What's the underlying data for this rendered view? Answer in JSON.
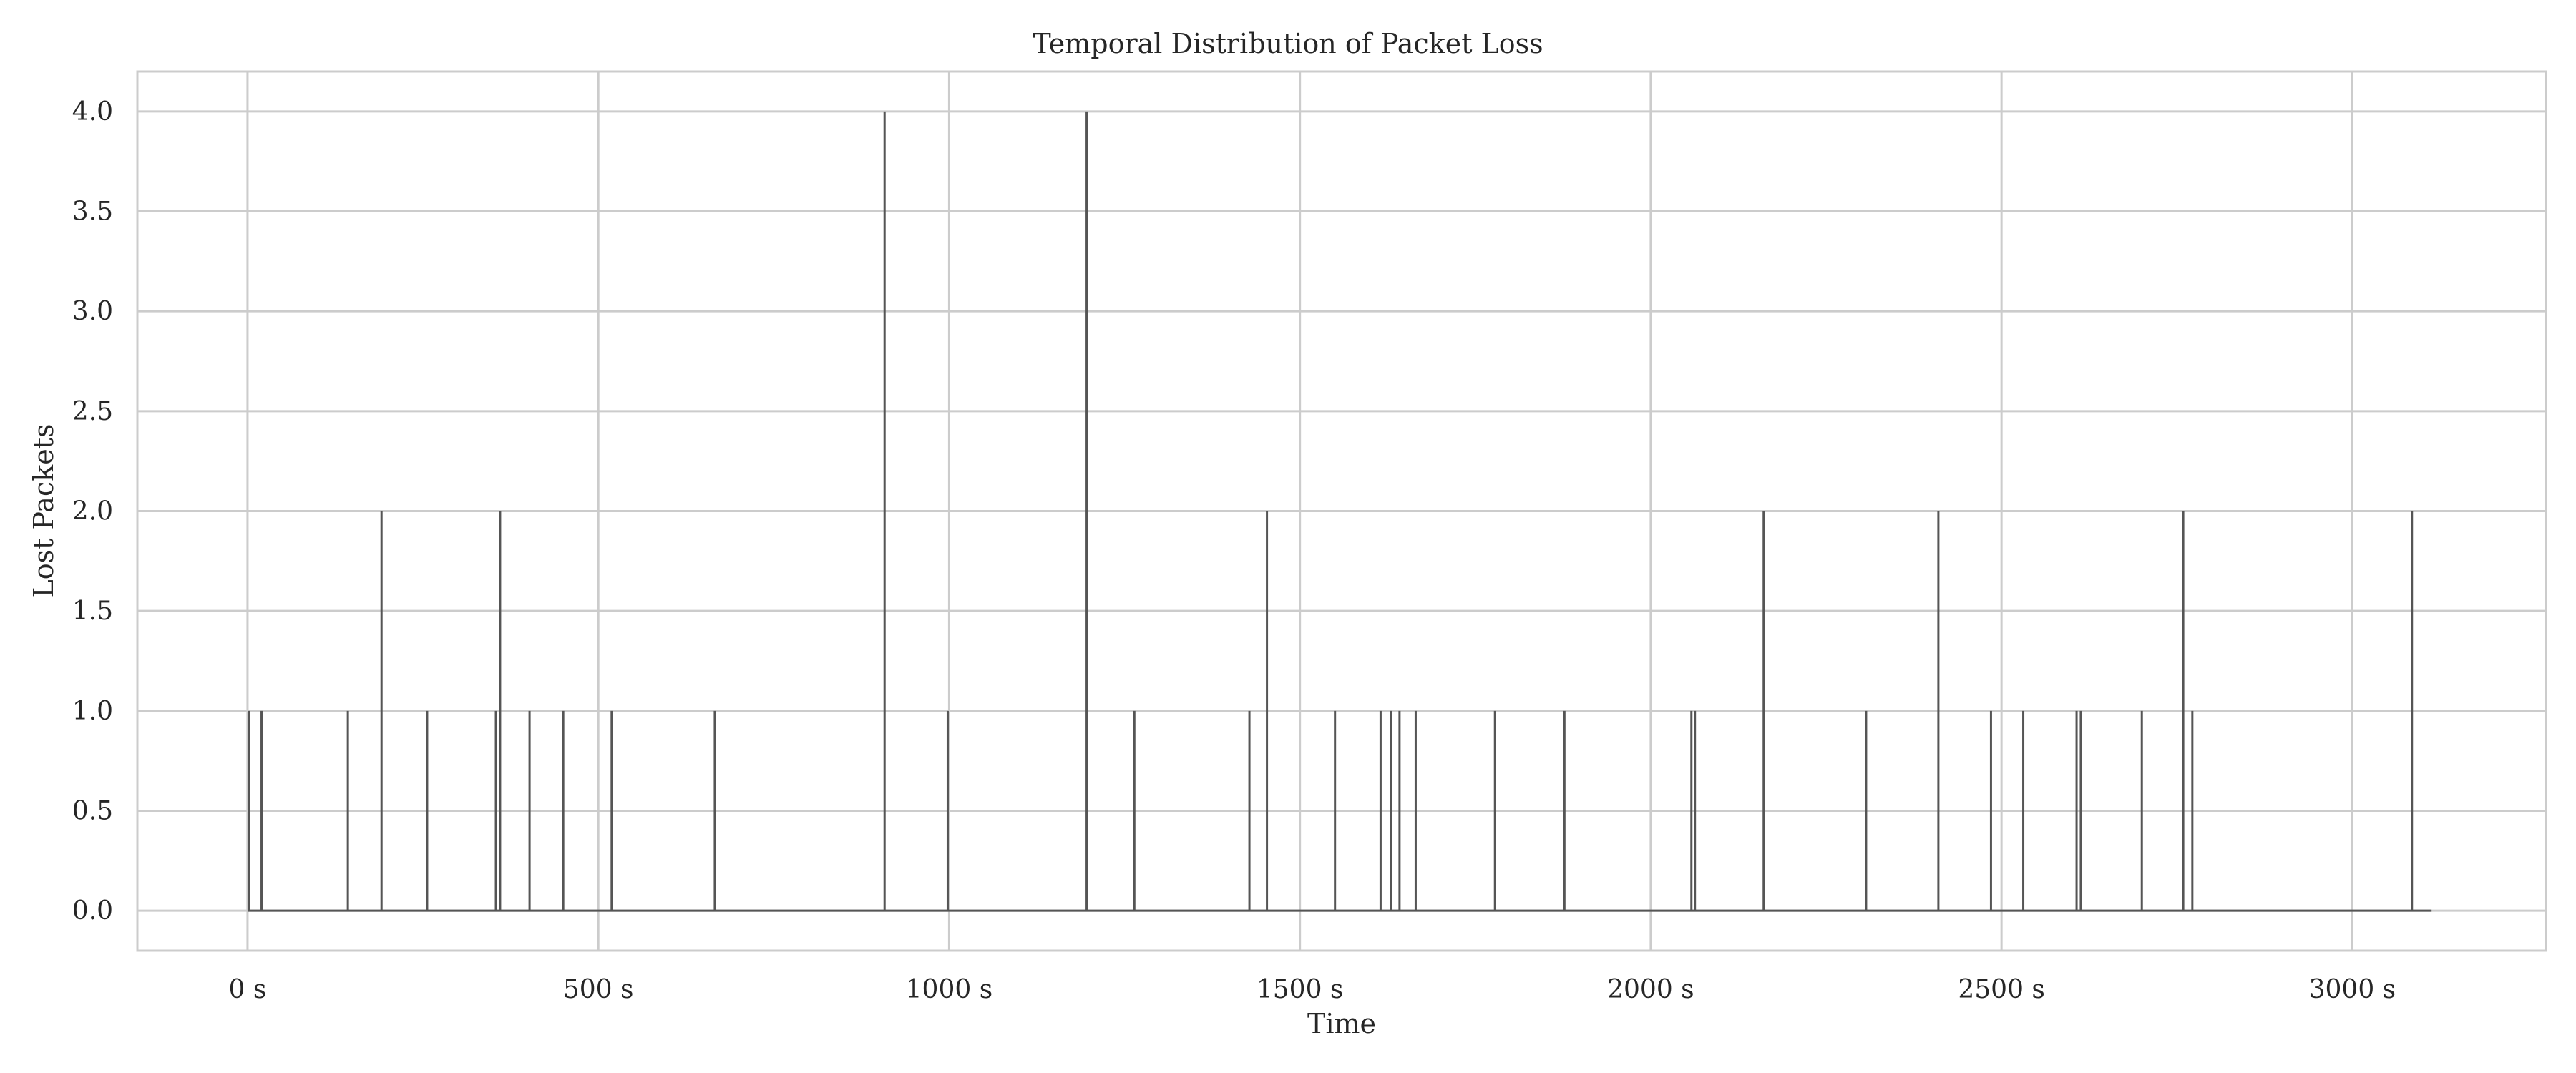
{
  "chart_data": {
    "type": "line",
    "title": "Temporal Distribution of Packet Loss",
    "xlabel": "Time",
    "ylabel": "Lost Packets",
    "xlim": [
      -157,
      3276
    ],
    "ylim": [
      -0.2,
      4.2
    ],
    "grid": true,
    "x_ticks": [
      0,
      500,
      1000,
      1500,
      2000,
      2500,
      3000
    ],
    "x_tick_labels": [
      "0 s",
      "500 s",
      "1000 s",
      "1500 s",
      "2000 s",
      "2500 s",
      "3000 s"
    ],
    "y_ticks": [
      0.0,
      0.5,
      1.0,
      1.5,
      2.0,
      2.5,
      3.0,
      3.5,
      4.0
    ],
    "y_tick_labels": [
      "0.0",
      "0.5",
      "1.0",
      "1.5",
      "2.0",
      "2.5",
      "3.0",
      "3.5",
      "4.0"
    ],
    "line_color": "#555555",
    "x_range": [
      0,
      3113
    ],
    "events": [
      {
        "t": 2,
        "lost": 1
      },
      {
        "t": 20,
        "lost": 1
      },
      {
        "t": 143,
        "lost": 1
      },
      {
        "t": 191,
        "lost": 2
      },
      {
        "t": 256,
        "lost": 1
      },
      {
        "t": 354,
        "lost": 1
      },
      {
        "t": 360,
        "lost": 2
      },
      {
        "t": 402,
        "lost": 1
      },
      {
        "t": 450,
        "lost": 1
      },
      {
        "t": 519,
        "lost": 1
      },
      {
        "t": 666,
        "lost": 1
      },
      {
        "t": 908,
        "lost": 4
      },
      {
        "t": 998,
        "lost": 1
      },
      {
        "t": 1196,
        "lost": 4
      },
      {
        "t": 1264,
        "lost": 1
      },
      {
        "t": 1428,
        "lost": 1
      },
      {
        "t": 1453,
        "lost": 2
      },
      {
        "t": 1550,
        "lost": 1
      },
      {
        "t": 1615,
        "lost": 1
      },
      {
        "t": 1630,
        "lost": 1
      },
      {
        "t": 1642,
        "lost": 1
      },
      {
        "t": 1665,
        "lost": 1
      },
      {
        "t": 1778,
        "lost": 1
      },
      {
        "t": 1877,
        "lost": 1
      },
      {
        "t": 2058,
        "lost": 1
      },
      {
        "t": 2063,
        "lost": 1
      },
      {
        "t": 2161,
        "lost": 2
      },
      {
        "t": 2307,
        "lost": 1
      },
      {
        "t": 2410,
        "lost": 2
      },
      {
        "t": 2485,
        "lost": 1
      },
      {
        "t": 2531,
        "lost": 1
      },
      {
        "t": 2607,
        "lost": 1
      },
      {
        "t": 2613,
        "lost": 1
      },
      {
        "t": 2700,
        "lost": 1
      },
      {
        "t": 2759,
        "lost": 2
      },
      {
        "t": 2772,
        "lost": 1
      },
      {
        "t": 3085,
        "lost": 2
      }
    ]
  }
}
